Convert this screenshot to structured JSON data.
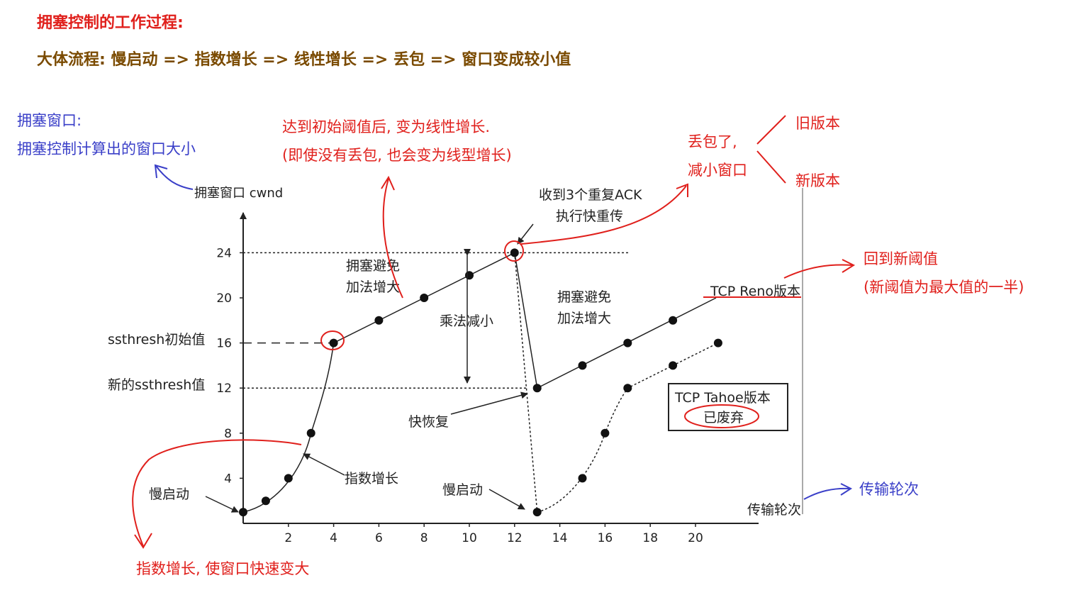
{
  "header": {
    "title": "拥塞控制的工作过程:",
    "flow": "大体流程: 慢启动 => 指数增长 => 线性增长 => 丢包 => 窗口变成较小值"
  },
  "notes": {
    "cwnd_title": "拥塞窗口:",
    "cwnd_desc": "拥塞控制计算出的窗口大小",
    "linear_line1": "达到初始阈值后, 变为线性增长.",
    "linear_line2": "(即使没有丢包, 也会变为线型增长)",
    "loss_line1": "丢包了,",
    "loss_line2": "减小窗口",
    "old_version": "旧版本",
    "new_version": "新版本",
    "new_threshold_line1": "回到新阈值",
    "new_threshold_line2": "(新阈值为最大值的一半)",
    "transmission_rounds": "传输轮次",
    "exponential_growth": "指数增长, 使窗口快速变大"
  },
  "figure": {
    "y_axis_label": "拥塞窗口 cwnd",
    "x_axis_label": "传输轮次",
    "dup_ack_line1": "收到3个重复ACK",
    "dup_ack_line2": "执行快重传",
    "ca_left_line1": "拥塞避免",
    "ca_left_line2": "加法增大",
    "ca_right_line1": "拥塞避免",
    "ca_right_line2": "加法增大",
    "mult_decrease": "乘法减小",
    "ssthresh_initial": "ssthresh初始值",
    "ssthresh_new": "新的ssthresh值",
    "fast_recovery": "快恢复",
    "exp_growth": "指数增长",
    "slow_start_left": "慢启动",
    "slow_start_right": "慢启动",
    "reno_label": "TCP Reno版本",
    "tahoe_label": "TCP Tahoe版本",
    "tahoe_status": "已废弃"
  },
  "chart_data": {
    "type": "line",
    "xlabel": "传输轮次",
    "ylabel": "拥塞窗口 cwnd",
    "x_ticks": [
      2,
      4,
      6,
      8,
      10,
      12,
      14,
      16,
      18,
      20
    ],
    "y_ticks": [
      4,
      8,
      12,
      16,
      20,
      24
    ],
    "xlim": [
      0,
      22
    ],
    "ylim": [
      0,
      27
    ],
    "series": [
      {
        "name": "",
        "points": [
          [
            0,
            1
          ],
          [
            1,
            2
          ],
          [
            2,
            4
          ],
          [
            3,
            8
          ],
          [
            4,
            16
          ],
          [
            6,
            18
          ],
          [
            8,
            20
          ],
          [
            10,
            22
          ],
          [
            12,
            24
          ]
        ]
      },
      {
        "name": "TCP Reno版本",
        "points": [
          [
            13,
            12
          ],
          [
            15,
            14
          ],
          [
            17,
            16
          ],
          [
            19,
            18
          ]
        ]
      },
      {
        "name": "TCP Tahoe版本",
        "points": [
          [
            13,
            1
          ],
          [
            15,
            4
          ],
          [
            16,
            8
          ],
          [
            17,
            12
          ],
          [
            19,
            14
          ],
          [
            21,
            16
          ]
        ]
      }
    ],
    "ssthresh_initial": 16,
    "ssthresh_new": 12,
    "peak": 24
  },
  "colors": {
    "header_title": "#e0201c",
    "header_flow": "#7a4a00",
    "red_annotation": "#e0201c",
    "blue_annotation": "#3a3fc8",
    "figure_ink": "#222222"
  }
}
